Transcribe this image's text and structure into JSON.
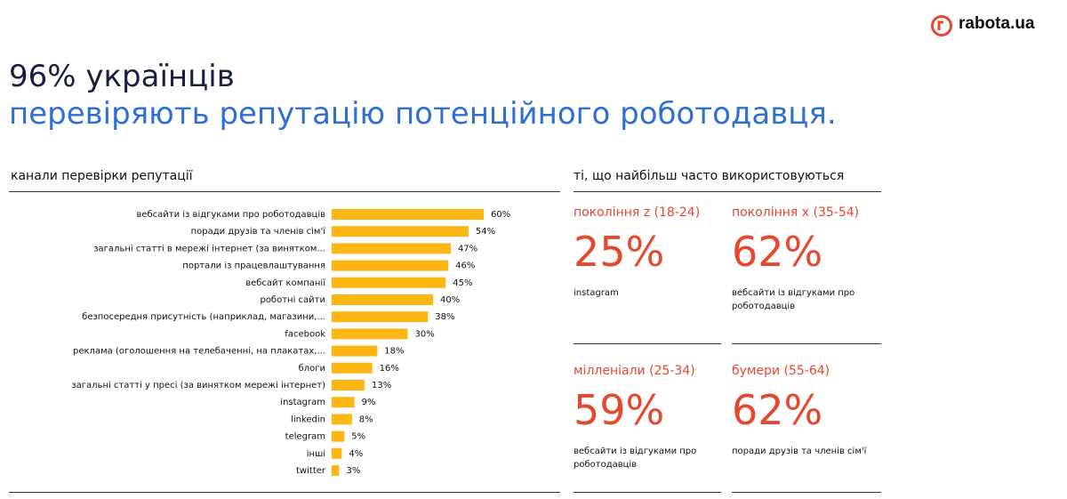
{
  "logo": "rabota.ua",
  "header": {
    "title": "96% українців",
    "subtitle": "перевіряють репутацію потенційного роботодавця."
  },
  "chart_data": {
    "type": "bar",
    "orientation": "horizontal",
    "title": "канали перевірки репутації",
    "categories": [
      "вебсайти із відгуками про роботодавців",
      "поради друзів та членів сім'ї",
      "загальні статті в мережі інтернет (за винятком...",
      "портали із працевлаштування",
      "вебсайт компанії",
      "роботні сайти",
      "безпосередня присутність (наприклад, магазини,...",
      "facebook",
      "реклама (оголошення на телебаченні, на плакатах,...",
      "блоги",
      "загальні статті у пресі (за винятком мережі інтернет)",
      "instagram",
      "linkedin",
      "telegram",
      "інші",
      "twitter"
    ],
    "values": [
      60,
      54,
      47,
      46,
      45,
      40,
      38,
      30,
      18,
      16,
      13,
      9,
      8,
      5,
      4,
      3
    ],
    "value_labels": [
      "60%",
      "54%",
      "47%",
      "46%",
      "45%",
      "40%",
      "38%",
      "30%",
      "18%",
      "16%",
      "13%",
      "9%",
      "8%",
      "5%",
      "4%",
      "3%"
    ],
    "color": "#fdb614"
  },
  "panels_title": "ті, що найбільш часто використовуються",
  "panels": [
    {
      "label": "покоління z (18-24)",
      "stat": "25%",
      "description": "instagram"
    },
    {
      "label": "покоління x (35-54)",
      "stat": "62%",
      "description": "вебсайти із відгуками про роботодавців"
    },
    {
      "label": "мілленіали (25-34)",
      "stat": "59%",
      "description": "вебсайти із відгуками про роботодавців"
    },
    {
      "label": "бумери (55-64)",
      "stat": "62%",
      "description": "поради друзів та членів сім'ї"
    }
  ]
}
